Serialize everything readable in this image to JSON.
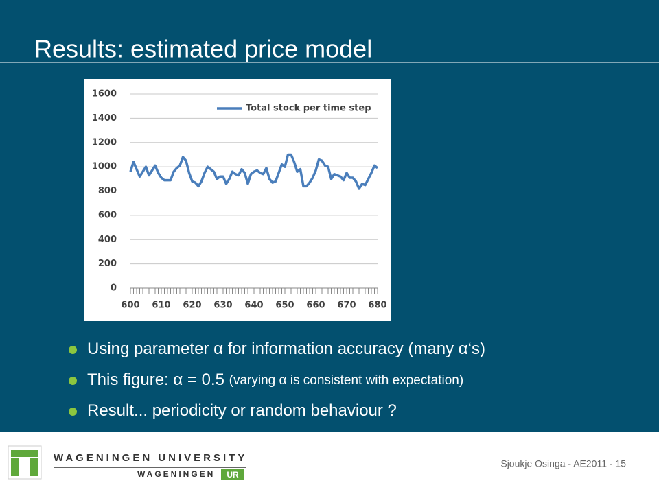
{
  "header": {
    "title": "Results: estimated price model"
  },
  "chart_data": {
    "type": "line",
    "x": [
      600,
      601,
      602,
      603,
      604,
      605,
      606,
      607,
      608,
      609,
      610,
      611,
      612,
      613,
      614,
      615,
      616,
      617,
      618,
      619,
      620,
      621,
      622,
      623,
      624,
      625,
      626,
      627,
      628,
      629,
      630,
      631,
      632,
      633,
      634,
      635,
      636,
      637,
      638,
      639,
      640,
      641,
      642,
      643,
      644,
      645,
      646,
      647,
      648,
      649,
      650,
      651,
      652,
      653,
      654,
      655,
      656,
      657,
      658,
      659,
      660,
      661,
      662,
      663,
      664,
      665,
      666,
      667,
      668,
      669,
      670,
      671,
      672,
      673,
      674,
      675,
      676,
      677,
      678,
      679,
      680
    ],
    "series": [
      {
        "name": "Total stock per time step",
        "color": "#4a7ebb",
        "values": [
          960,
          1040,
          980,
          920,
          960,
          1000,
          930,
          970,
          1010,
          950,
          910,
          890,
          890,
          890,
          960,
          990,
          1010,
          1080,
          1050,
          950,
          880,
          870,
          840,
          880,
          950,
          1000,
          980,
          960,
          900,
          920,
          920,
          860,
          900,
          960,
          940,
          930,
          980,
          950,
          860,
          940,
          960,
          970,
          950,
          940,
          990,
          900,
          870,
          880,
          950,
          1020,
          1000,
          1100,
          1100,
          1040,
          960,
          980,
          840,
          840,
          870,
          910,
          970,
          1060,
          1050,
          1010,
          1000,
          900,
          940,
          930,
          920,
          890,
          950,
          910,
          910,
          880,
          820,
          860,
          850,
          900,
          950,
          1010,
          990
        ]
      }
    ],
    "xlim": [
      600,
      680
    ],
    "xticks": [
      600,
      610,
      620,
      630,
      640,
      650,
      660,
      670,
      680
    ],
    "ylim": [
      0,
      1600
    ],
    "yticks": [
      0,
      200,
      400,
      600,
      800,
      1000,
      1200,
      1400,
      1600
    ],
    "grid": true,
    "legend": "upper right"
  },
  "bullets": [
    {
      "parts": [
        "Using parameter α for information accuracy (many α‘s)"
      ]
    },
    {
      "parts": [
        "This figure:  α = 0.5 ",
        "(varying α is consistent with expectation)"
      ]
    },
    {
      "parts": [
        "Result... periodicity or random behaviour ?"
      ]
    }
  ],
  "footer": {
    "credit": "Sjoukje Osinga - AE2011 - 15",
    "logo_top": "WAGENINGEN UNIVERSITY",
    "logo_bottom": "WAGENINGEN",
    "logo_ur": "UR"
  }
}
